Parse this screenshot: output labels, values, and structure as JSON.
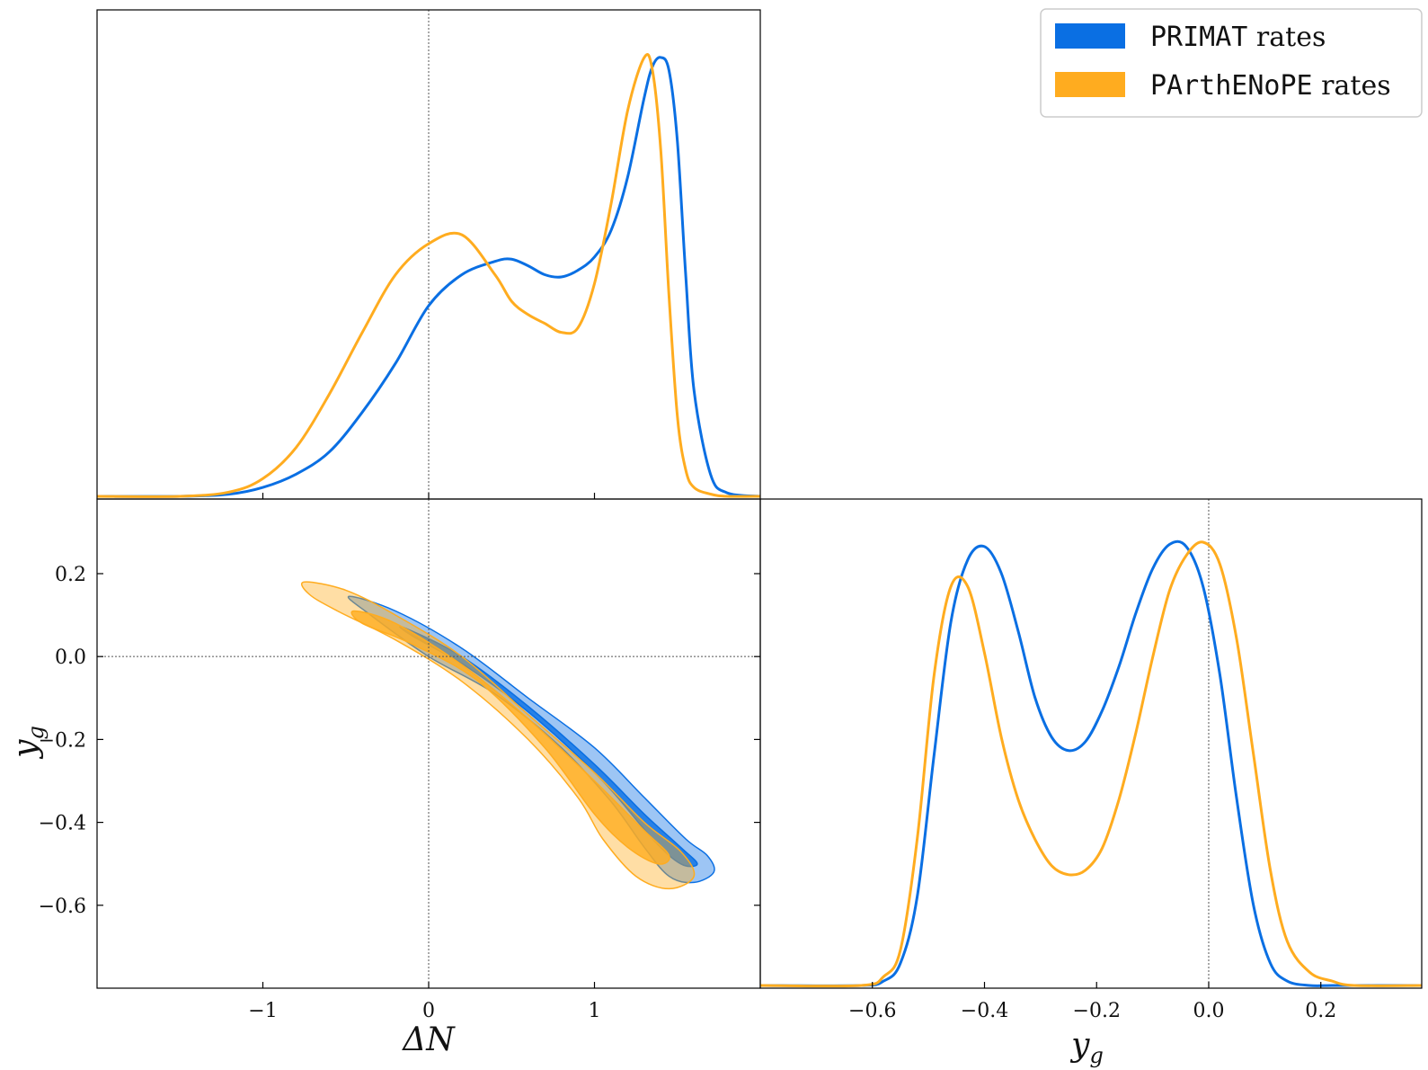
{
  "chart_data": {
    "type": "corner",
    "legend": {
      "placement": "top-right",
      "entries": [
        {
          "code": "PRIMAT",
          "suffix": " rates",
          "color": "#0a6fe3"
        },
        {
          "code": "PArthENoPE",
          "suffix": " rates",
          "color": "#ffac1f"
        }
      ]
    },
    "axes_labels": {
      "x1": "ΔN",
      "x2_base": "y",
      "x2_sub": "g",
      "y_base": "y",
      "y_sub": "g"
    },
    "ranges": {
      "dN": [
        -2.0,
        2.0
      ],
      "yg": [
        -0.8,
        0.38
      ]
    },
    "ticks": {
      "dN": [
        {
          "v": -1,
          "label": "−1"
        },
        {
          "v": 0,
          "label": "0"
        },
        {
          "v": 1,
          "label": "1"
        }
      ],
      "yg": [
        {
          "v": -0.6,
          "label": "−0.6"
        },
        {
          "v": -0.4,
          "label": "−0.4"
        },
        {
          "v": -0.2,
          "label": "−0.2"
        },
        {
          "v": 0.0,
          "label": "0.0"
        },
        {
          "v": 0.2,
          "label": "0.2"
        }
      ]
    },
    "reference_lines": {
      "dN": 0,
      "yg": 0
    },
    "dN_marginal": {
      "x": [
        -2.0,
        -1.5,
        -1.2,
        -1.0,
        -0.8,
        -0.6,
        -0.4,
        -0.2,
        0.0,
        0.2,
        0.4,
        0.5,
        0.6,
        0.7,
        0.8,
        0.9,
        1.0,
        1.1,
        1.2,
        1.3,
        1.35,
        1.4,
        1.45,
        1.5,
        1.55,
        1.6,
        1.7,
        1.8,
        2.0
      ],
      "series": [
        {
          "name": "PRIMAT rates",
          "color": "#0a6fe3",
          "values": [
            0.0,
            0.0,
            0.005,
            0.02,
            0.05,
            0.1,
            0.19,
            0.3,
            0.43,
            0.5,
            0.53,
            0.535,
            0.52,
            0.5,
            0.495,
            0.51,
            0.54,
            0.6,
            0.72,
            0.9,
            0.97,
            0.99,
            0.96,
            0.8,
            0.5,
            0.24,
            0.05,
            0.008,
            0.0
          ]
        },
        {
          "name": "PArthENoPE rates",
          "color": "#ffac1f",
          "values": [
            0.0,
            0.0,
            0.01,
            0.04,
            0.11,
            0.23,
            0.37,
            0.5,
            0.57,
            0.59,
            0.5,
            0.44,
            0.41,
            0.39,
            0.37,
            0.38,
            0.48,
            0.66,
            0.87,
            0.99,
            0.96,
            0.78,
            0.45,
            0.18,
            0.06,
            0.02,
            0.005,
            0.0,
            0.0
          ]
        }
      ]
    },
    "yg_marginal": {
      "x": [
        -0.8,
        -0.62,
        -0.58,
        -0.55,
        -0.52,
        -0.49,
        -0.46,
        -0.43,
        -0.4,
        -0.37,
        -0.34,
        -0.31,
        -0.28,
        -0.25,
        -0.22,
        -0.19,
        -0.16,
        -0.13,
        -0.1,
        -0.07,
        -0.04,
        -0.01,
        0.02,
        0.05,
        0.08,
        0.11,
        0.14,
        0.18,
        0.22,
        0.26,
        0.38
      ],
      "series": [
        {
          "name": "PRIMAT rates",
          "color": "#0a6fe3",
          "values": [
            0.0,
            0.0,
            0.01,
            0.05,
            0.2,
            0.52,
            0.82,
            0.96,
            0.99,
            0.93,
            0.8,
            0.65,
            0.56,
            0.53,
            0.55,
            0.62,
            0.72,
            0.84,
            0.94,
            0.995,
            0.99,
            0.9,
            0.7,
            0.42,
            0.18,
            0.05,
            0.01,
            0.0,
            0.0,
            0.0,
            0.0
          ]
        },
        {
          "name": "PArthENoPE rates",
          "color": "#ffac1f",
          "values": [
            0.0,
            0.0,
            0.02,
            0.08,
            0.33,
            0.7,
            0.9,
            0.9,
            0.75,
            0.56,
            0.42,
            0.33,
            0.27,
            0.25,
            0.26,
            0.31,
            0.42,
            0.57,
            0.74,
            0.89,
            0.97,
            1.0,
            0.95,
            0.78,
            0.52,
            0.26,
            0.1,
            0.03,
            0.01,
            0.0,
            0.0
          ]
        }
      ]
    },
    "contours_2d": [
      {
        "name": "PRIMAT rates",
        "level": "95%",
        "color": "#0a6fe3",
        "alpha": 0.4,
        "points": [
          [
            -0.48,
            0.145
          ],
          [
            -0.2,
            0.11
          ],
          [
            0.2,
            0.02
          ],
          [
            0.6,
            -0.1
          ],
          [
            1.0,
            -0.22
          ],
          [
            1.3,
            -0.34
          ],
          [
            1.55,
            -0.44
          ],
          [
            1.68,
            -0.48
          ],
          [
            1.72,
            -0.52
          ],
          [
            1.6,
            -0.545
          ],
          [
            1.45,
            -0.53
          ],
          [
            1.3,
            -0.46
          ],
          [
            1.1,
            -0.35
          ],
          [
            0.8,
            -0.22
          ],
          [
            0.4,
            -0.09
          ],
          [
            0.0,
            0.0
          ],
          [
            -0.35,
            0.1
          ]
        ]
      },
      {
        "name": "PRIMAT rates",
        "level": "68%",
        "color": "#0a6fe3",
        "alpha": 0.8,
        "points": [
          [
            -0.15,
            0.07
          ],
          [
            0.2,
            0.0
          ],
          [
            0.6,
            -0.12
          ],
          [
            1.0,
            -0.26
          ],
          [
            1.3,
            -0.38
          ],
          [
            1.52,
            -0.46
          ],
          [
            1.62,
            -0.5
          ],
          [
            1.52,
            -0.5
          ],
          [
            1.35,
            -0.44
          ],
          [
            1.05,
            -0.3
          ],
          [
            0.65,
            -0.15
          ],
          [
            0.25,
            -0.03
          ],
          [
            -0.1,
            0.05
          ]
        ]
      },
      {
        "name": "PArthENoPE rates",
        "level": "95%",
        "color": "#ffac1f",
        "alpha": 0.4,
        "points": [
          [
            -0.75,
            0.18
          ],
          [
            -0.5,
            0.16
          ],
          [
            -0.2,
            0.1
          ],
          [
            0.2,
            0.0
          ],
          [
            0.6,
            -0.14
          ],
          [
            1.0,
            -0.28
          ],
          [
            1.3,
            -0.4
          ],
          [
            1.52,
            -0.47
          ],
          [
            1.6,
            -0.53
          ],
          [
            1.45,
            -0.56
          ],
          [
            1.25,
            -0.53
          ],
          [
            1.05,
            -0.44
          ],
          [
            0.9,
            -0.34
          ],
          [
            0.6,
            -0.2
          ],
          [
            0.2,
            -0.06
          ],
          [
            -0.2,
            0.04
          ],
          [
            -0.55,
            0.11
          ],
          [
            -0.72,
            0.15
          ]
        ]
      },
      {
        "name": "PArthENoPE rates",
        "level": "68%",
        "color": "#ffac1f",
        "alpha": 0.8,
        "points": [
          [
            -0.45,
            0.11
          ],
          [
            -0.2,
            0.08
          ],
          [
            0.2,
            -0.02
          ],
          [
            0.6,
            -0.15
          ],
          [
            1.0,
            -0.3
          ],
          [
            1.3,
            -0.42
          ],
          [
            1.45,
            -0.48
          ],
          [
            1.38,
            -0.5
          ],
          [
            1.2,
            -0.46
          ],
          [
            1.0,
            -0.38
          ],
          [
            0.7,
            -0.22
          ],
          [
            0.3,
            -0.06
          ],
          [
            -0.1,
            0.03
          ],
          [
            -0.4,
            0.08
          ]
        ]
      }
    ]
  }
}
